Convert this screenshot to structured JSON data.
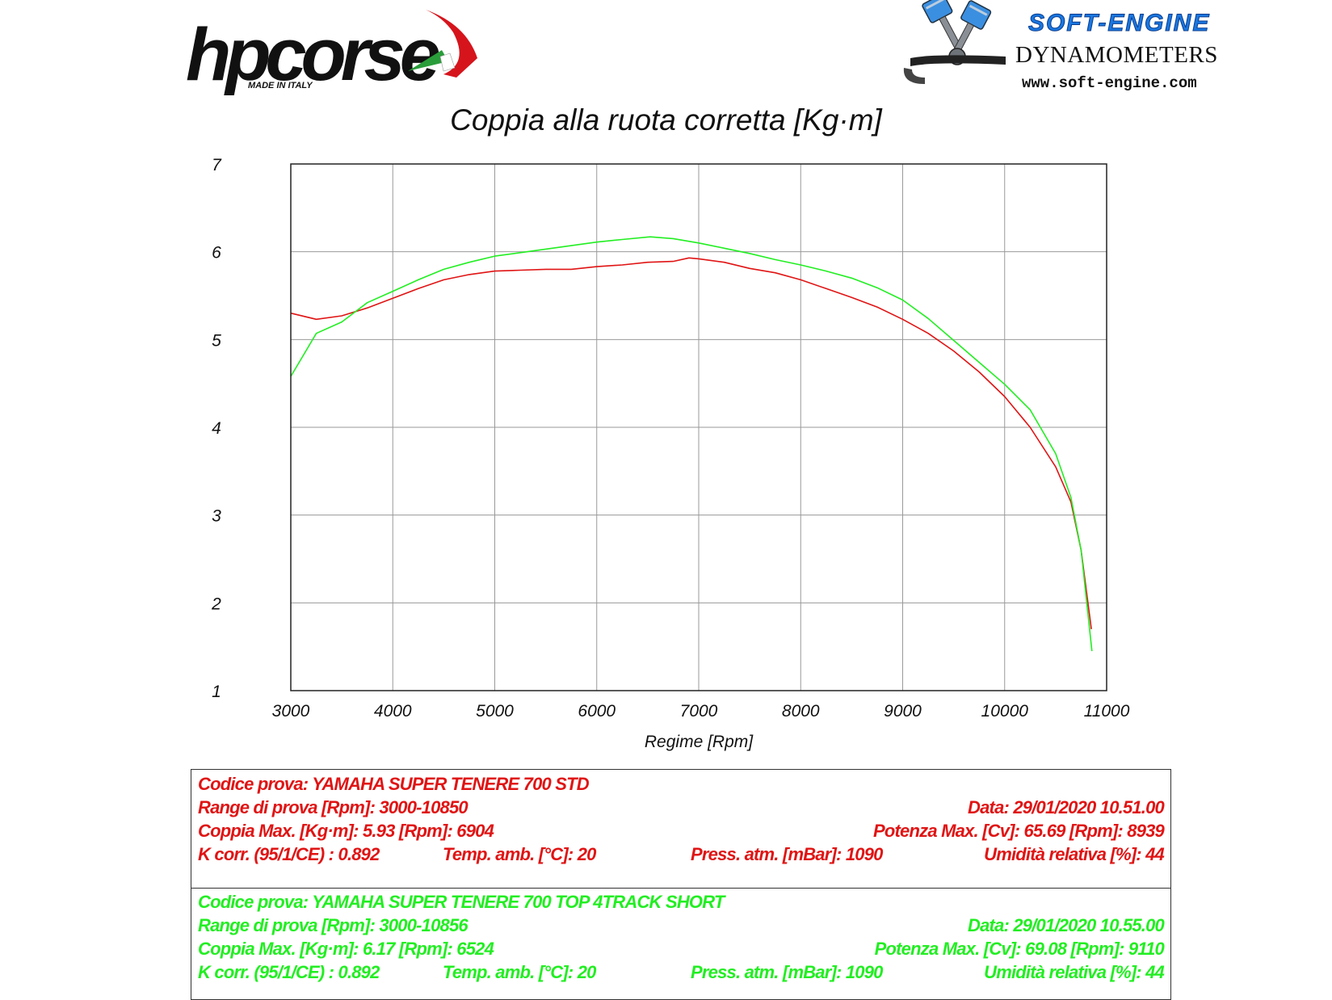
{
  "logos": {
    "hp_word": "hpcorse",
    "hp_tagline": "MADE IN ITALY",
    "se_title": "SOFT-ENGINE",
    "se_subtitle": "DYNAMOMETERS",
    "se_brand": "SOFT-ENGINE",
    "se_url": "www.soft-engine.com"
  },
  "colors": {
    "red": "#e01414",
    "green": "#22ee22",
    "grid": "#999999"
  },
  "chart_data": {
    "type": "line",
    "title": "Coppia alla ruota corretta [Kg·m]",
    "xlabel": "Regime [Rpm]",
    "ylabel": "",
    "xlim": [
      3000,
      11000
    ],
    "ylim": [
      1,
      7
    ],
    "xticks": [
      3000,
      4000,
      5000,
      6000,
      7000,
      8000,
      9000,
      10000,
      11000
    ],
    "yticks": [
      1,
      2,
      3,
      4,
      5,
      6,
      7
    ],
    "grid": true,
    "legend": "none",
    "series": [
      {
        "color": "#e01414",
        "x": [
          3000,
          3250,
          3500,
          3750,
          4000,
          4250,
          4500,
          4750,
          5000,
          5250,
          5500,
          5750,
          6000,
          6250,
          6500,
          6750,
          6904,
          7000,
          7250,
          7500,
          7750,
          8000,
          8250,
          8500,
          8750,
          9000,
          9250,
          9500,
          9750,
          10000,
          10250,
          10500,
          10650,
          10750,
          10850
        ],
        "y": [
          5.3,
          5.23,
          5.27,
          5.36,
          5.47,
          5.58,
          5.68,
          5.74,
          5.78,
          5.79,
          5.8,
          5.8,
          5.83,
          5.85,
          5.88,
          5.89,
          5.93,
          5.92,
          5.88,
          5.81,
          5.76,
          5.68,
          5.58,
          5.48,
          5.37,
          5.23,
          5.07,
          4.87,
          4.63,
          4.35,
          4.0,
          3.55,
          3.15,
          2.6,
          1.7
        ]
      },
      {
        "color": "#22ee22",
        "x": [
          3000,
          3250,
          3500,
          3750,
          4000,
          4250,
          4500,
          4750,
          5000,
          5250,
          5500,
          5750,
          6000,
          6250,
          6524,
          6750,
          7000,
          7250,
          7500,
          7750,
          8000,
          8250,
          8500,
          8750,
          9000,
          9250,
          9500,
          9750,
          10000,
          10250,
          10500,
          10650,
          10750,
          10856
        ],
        "y": [
          4.58,
          5.07,
          5.2,
          5.42,
          5.55,
          5.68,
          5.8,
          5.88,
          5.95,
          5.99,
          6.03,
          6.07,
          6.11,
          6.14,
          6.17,
          6.15,
          6.1,
          6.04,
          5.98,
          5.91,
          5.85,
          5.78,
          5.7,
          5.59,
          5.45,
          5.24,
          4.99,
          4.74,
          4.49,
          4.2,
          3.7,
          3.2,
          2.6,
          1.45
        ]
      }
    ]
  },
  "tests": [
    {
      "code": "Codice prova: YAMAHA SUPER TENERE 700 STD",
      "range": "Range di prova [Rpm]: 3000-10850",
      "date": "Data: 29/01/2020   10.51.00",
      "torque": "Coppia Max. [Kg·m]: 5.93   [Rpm]: 6904",
      "power": "Potenza Max. [Cv]: 65.69   [Rpm]: 8939",
      "kcorr": "K corr. (95/1/CE) : 0.892",
      "temp": "Temp. amb. [°C]: 20",
      "press": "Press. atm. [mBar]: 1090",
      "humidity": "Umidità relativa [%]: 44"
    },
    {
      "code": "Codice prova: YAMAHA SUPER TENERE 700 TOP 4TRACK SHORT",
      "range": "Range di prova [Rpm]: 3000-10856",
      "date": "Data: 29/01/2020   10.55.00",
      "torque": "Coppia Max. [Kg·m]: 6.17   [Rpm]: 6524",
      "power": "Potenza Max. [Cv]: 69.08   [Rpm]: 9110",
      "kcorr": "K corr. (95/1/CE) : 0.892",
      "temp": "Temp. amb. [°C]: 20",
      "press": "Press. atm. [mBar]: 1090",
      "humidity": "Umidità relativa [%]: 44"
    }
  ]
}
